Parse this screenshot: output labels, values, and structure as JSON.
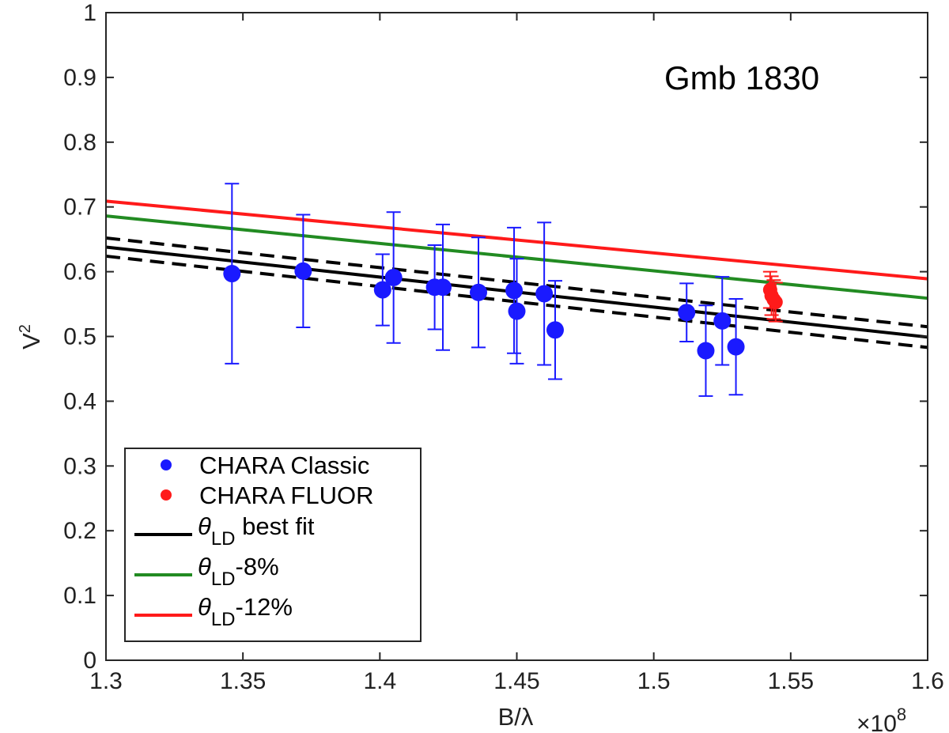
{
  "chart_data": {
    "type": "scatter",
    "annotation": "Gmb 1830",
    "xlabel": "B/λ",
    "ylabel": "V",
    "ylabel_superscript": "2",
    "x_multiplier": "×10",
    "x_multiplier_exponent": "8",
    "xlim": [
      1.3,
      1.6
    ],
    "ylim": [
      0,
      1
    ],
    "x_ticks": [
      "1.3",
      "1.35",
      "1.4",
      "1.45",
      "1.5",
      "1.55",
      "1.6"
    ],
    "y_ticks": [
      "0",
      "0.1",
      "0.2",
      "0.3",
      "0.4",
      "0.5",
      "0.6",
      "0.7",
      "0.8",
      "0.9",
      "1"
    ],
    "grid": false,
    "legend_position": "bottom-left",
    "series": [
      {
        "name": "CHARA Classic",
        "kind": "points",
        "color": "#1a1aff",
        "points": [
          {
            "x": 1.346,
            "y": 0.597,
            "err": 0.139
          },
          {
            "x": 1.372,
            "y": 0.601,
            "err": 0.087
          },
          {
            "x": 1.401,
            "y": 0.572,
            "err": 0.055
          },
          {
            "x": 1.405,
            "y": 0.591,
            "err": 0.101
          },
          {
            "x": 1.42,
            "y": 0.576,
            "err": 0.065
          },
          {
            "x": 1.423,
            "y": 0.576,
            "err": 0.097
          },
          {
            "x": 1.436,
            "y": 0.568,
            "err": 0.085
          },
          {
            "x": 1.449,
            "y": 0.571,
            "err": 0.097
          },
          {
            "x": 1.45,
            "y": 0.539,
            "err": 0.081
          },
          {
            "x": 1.46,
            "y": 0.566,
            "err": 0.11
          },
          {
            "x": 1.464,
            "y": 0.51,
            "err": 0.076
          },
          {
            "x": 1.512,
            "y": 0.537,
            "err": 0.045
          },
          {
            "x": 1.519,
            "y": 0.478,
            "err": 0.07
          },
          {
            "x": 1.525,
            "y": 0.524,
            "err": 0.068
          },
          {
            "x": 1.53,
            "y": 0.484,
            "err": 0.074
          }
        ]
      },
      {
        "name": "CHARA FLUOR",
        "kind": "points",
        "color": "#ff1a1a",
        "points": [
          {
            "x": 1.5425,
            "y": 0.572,
            "err": 0.028
          },
          {
            "x": 1.543,
            "y": 0.563,
            "err": 0.03
          },
          {
            "x": 1.5438,
            "y": 0.557,
            "err": 0.03
          },
          {
            "x": 1.5445,
            "y": 0.553,
            "err": 0.03
          }
        ]
      },
      {
        "name": "θ",
        "name_subscript": "LD",
        "name_suffix": " best fit",
        "kind": "line",
        "color": "#000000",
        "x": [
          1.3,
          1.6
        ],
        "y": [
          0.638,
          0.499
        ]
      },
      {
        "name": "",
        "kind": "line",
        "dashed": true,
        "color": "#000000",
        "x": [
          1.3,
          1.6
        ],
        "y": [
          0.652,
          0.515
        ]
      },
      {
        "name": "",
        "kind": "line",
        "dashed": true,
        "color": "#000000",
        "x": [
          1.3,
          1.6
        ],
        "y": [
          0.624,
          0.483
        ]
      },
      {
        "name": "θ",
        "name_subscript": "LD",
        "name_suffix": "-8%",
        "kind": "line",
        "color": "#228b22",
        "x": [
          1.3,
          1.6
        ],
        "y": [
          0.686,
          0.559
        ]
      },
      {
        "name": "θ",
        "name_subscript": "LD",
        "name_suffix": "-12%",
        "kind": "line",
        "color": "#ff1a1a",
        "x": [
          1.3,
          1.6
        ],
        "y": [
          0.709,
          0.589
        ]
      }
    ],
    "legend": [
      {
        "label": "CHARA Classic",
        "sub": "",
        "suffix": "",
        "marker": "dot",
        "color": "#1a1aff"
      },
      {
        "label": "CHARA FLUOR",
        "sub": "",
        "suffix": "",
        "marker": "dot",
        "color": "#ff1a1a"
      },
      {
        "label": "θ",
        "sub": "LD",
        "suffix": " best fit",
        "marker": "line",
        "color": "#000000"
      },
      {
        "label": "θ",
        "sub": "LD",
        "suffix": "-8%",
        "marker": "line",
        "color": "#228b22"
      },
      {
        "label": "θ",
        "sub": "LD",
        "suffix": "-12%",
        "marker": "line",
        "color": "#ff1a1a"
      }
    ]
  }
}
